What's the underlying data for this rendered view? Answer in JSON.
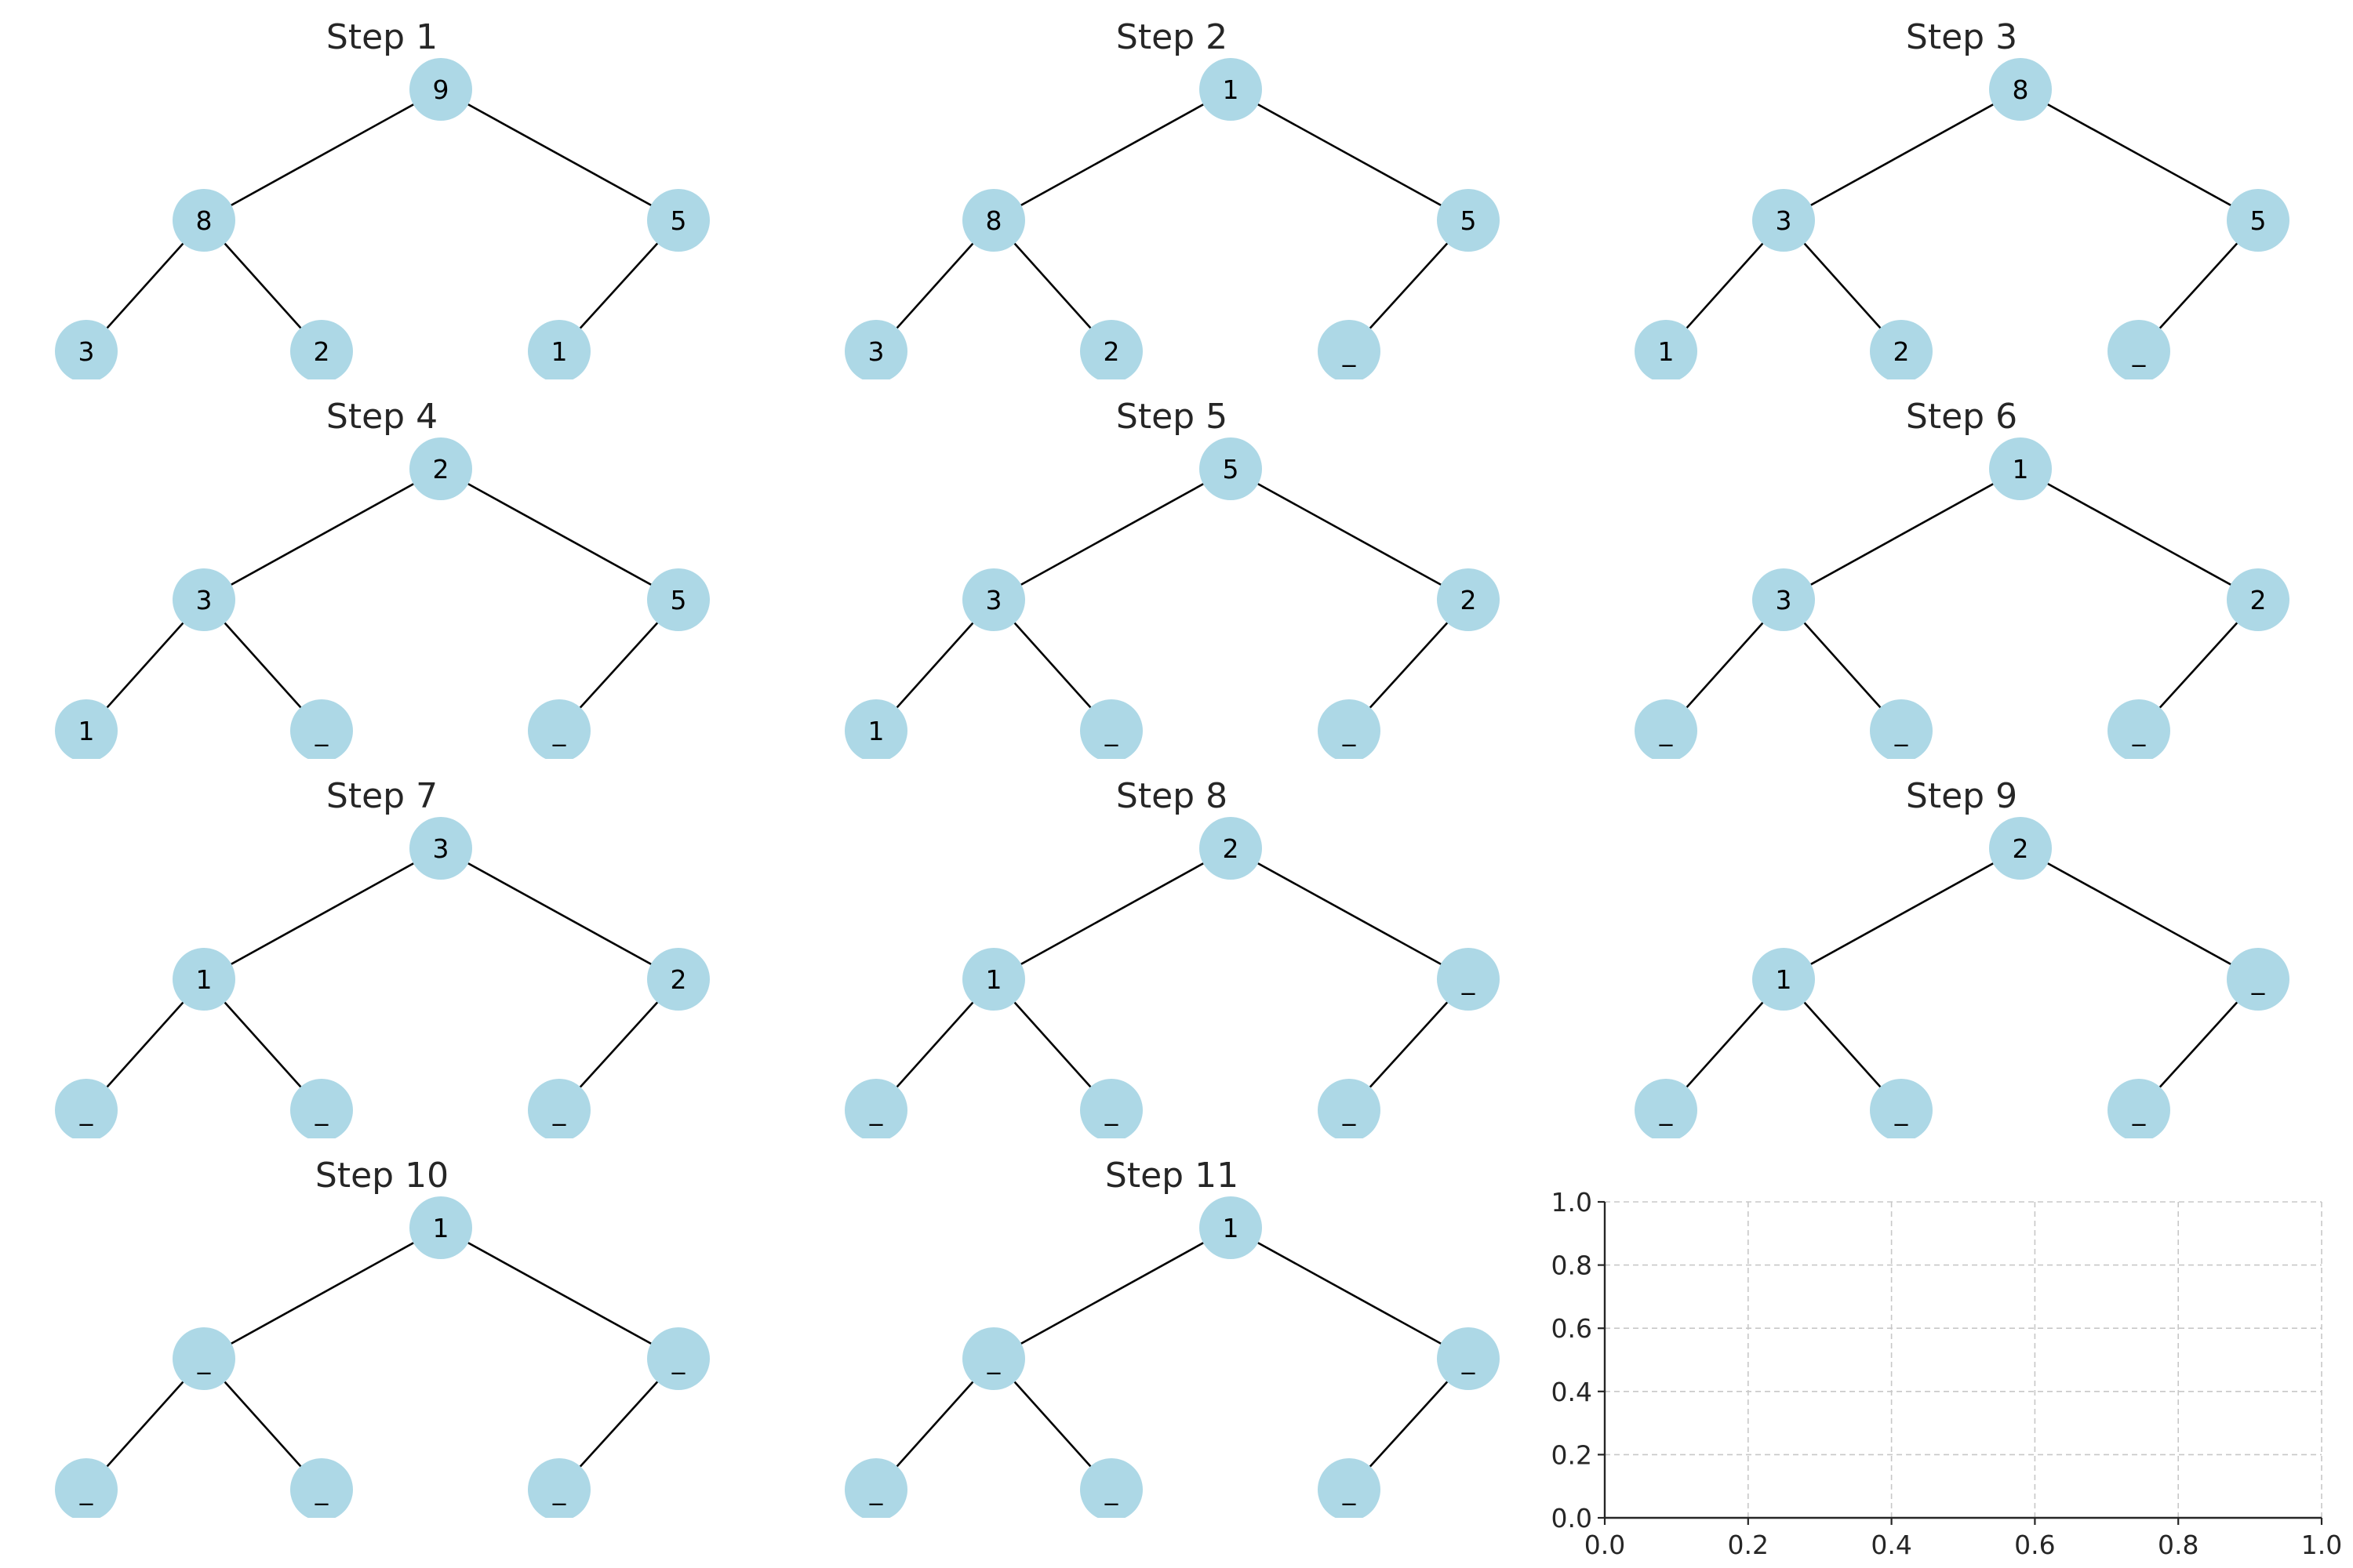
{
  "node_color": "#add8e6",
  "panels": [
    {
      "title": "Step 1",
      "nodes": [
        "9",
        "8",
        "5",
        "3",
        "2",
        "1"
      ]
    },
    {
      "title": "Step 2",
      "nodes": [
        "1",
        "8",
        "5",
        "3",
        "2",
        "_"
      ]
    },
    {
      "title": "Step 3",
      "nodes": [
        "8",
        "3",
        "5",
        "1",
        "2",
        "_"
      ]
    },
    {
      "title": "Step 4",
      "nodes": [
        "2",
        "3",
        "5",
        "1",
        "_",
        "_"
      ]
    },
    {
      "title": "Step 5",
      "nodes": [
        "5",
        "3",
        "2",
        "1",
        "_",
        "_"
      ]
    },
    {
      "title": "Step 6",
      "nodes": [
        "1",
        "3",
        "2",
        "_",
        "_",
        "_"
      ]
    },
    {
      "title": "Step 7",
      "nodes": [
        "3",
        "1",
        "2",
        "_",
        "_",
        "_"
      ]
    },
    {
      "title": "Step 8",
      "nodes": [
        "2",
        "1",
        "_",
        "_",
        "_",
        "_"
      ]
    },
    {
      "title": "Step 9",
      "nodes": [
        "2",
        "1",
        "_",
        "_",
        "_",
        "_"
      ]
    },
    {
      "title": "Step 10",
      "nodes": [
        "1",
        "_",
        "_",
        "_",
        "_",
        "_"
      ]
    },
    {
      "title": "Step 11",
      "nodes": [
        "1",
        "_",
        "_",
        "_",
        "_",
        "_"
      ]
    }
  ],
  "empty_axes": {
    "xlim": [
      0,
      1
    ],
    "ylim": [
      0,
      1
    ],
    "x_ticks": [
      "0.0",
      "0.2",
      "0.4",
      "0.6",
      "0.8",
      "1.0"
    ],
    "y_ticks": [
      "0.0",
      "0.2",
      "0.4",
      "0.6",
      "0.8",
      "1.0"
    ],
    "grid": true
  }
}
